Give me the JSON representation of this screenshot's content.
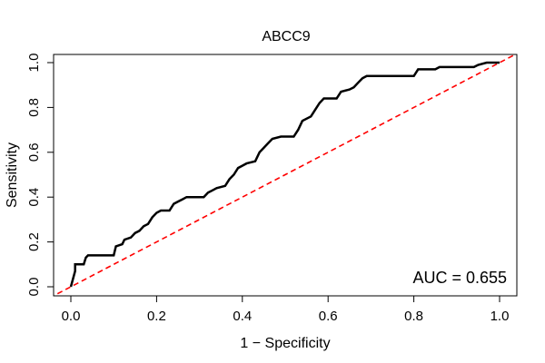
{
  "chart_data": {
    "type": "line",
    "title": "ABCC9",
    "xlabel": "1 − Specificity",
    "ylabel": "Sensitivity",
    "xlim": [
      0,
      1
    ],
    "ylim": [
      0,
      1
    ],
    "x_ticks": [
      "0.0",
      "0.2",
      "0.4",
      "0.6",
      "0.8",
      "1.0"
    ],
    "y_ticks": [
      "0.0",
      "0.2",
      "0.4",
      "0.6",
      "0.8",
      "1.0"
    ],
    "grid": false,
    "legend": "none",
    "annotation": "AUC = 0.655",
    "series": [
      {
        "color": "#000000",
        "points": [
          [
            0.0,
            0.0
          ],
          [
            0.01,
            0.07
          ],
          [
            0.01,
            0.1
          ],
          [
            0.03,
            0.1
          ],
          [
            0.035,
            0.13
          ],
          [
            0.04,
            0.14
          ],
          [
            0.1,
            0.14
          ],
          [
            0.105,
            0.18
          ],
          [
            0.12,
            0.19
          ],
          [
            0.125,
            0.21
          ],
          [
            0.14,
            0.22
          ],
          [
            0.15,
            0.24
          ],
          [
            0.16,
            0.25
          ],
          [
            0.17,
            0.27
          ],
          [
            0.18,
            0.28
          ],
          [
            0.19,
            0.31
          ],
          [
            0.2,
            0.33
          ],
          [
            0.21,
            0.34
          ],
          [
            0.23,
            0.34
          ],
          [
            0.24,
            0.37
          ],
          [
            0.25,
            0.38
          ],
          [
            0.26,
            0.39
          ],
          [
            0.27,
            0.4
          ],
          [
            0.31,
            0.4
          ],
          [
            0.32,
            0.42
          ],
          [
            0.33,
            0.43
          ],
          [
            0.34,
            0.44
          ],
          [
            0.36,
            0.45
          ],
          [
            0.37,
            0.48
          ],
          [
            0.38,
            0.5
          ],
          [
            0.39,
            0.53
          ],
          [
            0.4,
            0.54
          ],
          [
            0.41,
            0.55
          ],
          [
            0.43,
            0.56
          ],
          [
            0.44,
            0.6
          ],
          [
            0.45,
            0.62
          ],
          [
            0.46,
            0.64
          ],
          [
            0.47,
            0.66
          ],
          [
            0.49,
            0.67
          ],
          [
            0.52,
            0.67
          ],
          [
            0.53,
            0.7
          ],
          [
            0.54,
            0.74
          ],
          [
            0.56,
            0.76
          ],
          [
            0.57,
            0.79
          ],
          [
            0.58,
            0.82
          ],
          [
            0.59,
            0.84
          ],
          [
            0.62,
            0.84
          ],
          [
            0.63,
            0.87
          ],
          [
            0.65,
            0.88
          ],
          [
            0.66,
            0.89
          ],
          [
            0.67,
            0.91
          ],
          [
            0.68,
            0.93
          ],
          [
            0.69,
            0.94
          ],
          [
            0.8,
            0.94
          ],
          [
            0.81,
            0.97
          ],
          [
            0.85,
            0.97
          ],
          [
            0.86,
            0.98
          ],
          [
            0.94,
            0.98
          ],
          [
            0.95,
            0.99
          ],
          [
            0.97,
            1.0
          ],
          [
            1.0,
            1.0
          ]
        ]
      }
    ],
    "reference_line": {
      "points": [
        [
          0,
          0
        ],
        [
          1,
          1
        ]
      ],
      "color": "#ff0000",
      "style": "dashed"
    }
  }
}
